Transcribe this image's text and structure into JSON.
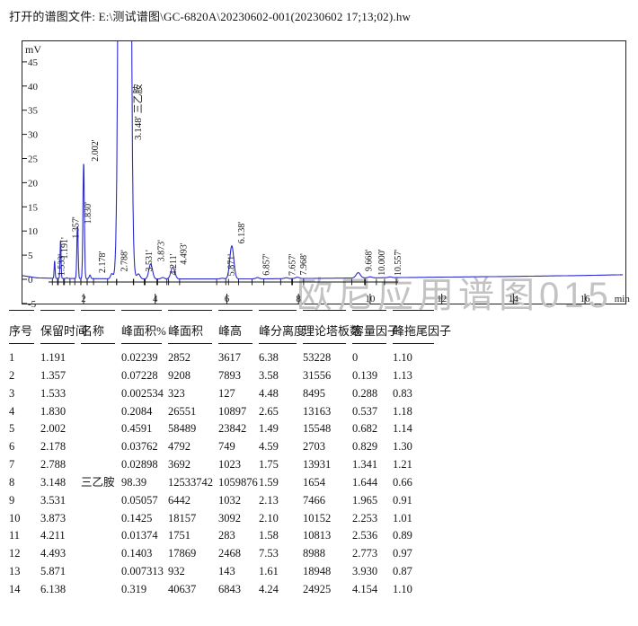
{
  "header": {
    "title": "打开的谱图文件: E:\\测试谱图\\GC-6820A\\20230602-001(20230602 17;13;02).hw"
  },
  "watermark": "欧尼应用谱图015",
  "chart_data": {
    "type": "line",
    "title": "",
    "xlabel": "min",
    "ylabel": "mV",
    "xlim": [
      0.3,
      17.1
    ],
    "ylim": [
      -5,
      49
    ],
    "x_ticks": [
      2,
      4,
      6,
      8,
      10,
      12,
      14,
      16
    ],
    "y_ticks": [
      45,
      40,
      35,
      30,
      25,
      20,
      15,
      10,
      5,
      0,
      -5
    ],
    "grid": "off",
    "trace_color": "#2b2bd0",
    "axis_color": "#1a1a1a",
    "baseline_points": [
      [
        0.26,
        0.8
      ],
      [
        0.7,
        0.3
      ],
      [
        1.2,
        0.2
      ],
      [
        3,
        0.1
      ],
      [
        5,
        0.07
      ],
      [
        7,
        0.1
      ],
      [
        8.5,
        0.2
      ],
      [
        10,
        0.3
      ],
      [
        12,
        0.45
      ],
      [
        14,
        0.6
      ],
      [
        16,
        0.8
      ],
      [
        17.06,
        0.95
      ]
    ],
    "peaks": [
      {
        "rt": 1.191,
        "height_mV": 3.62,
        "sigma": 0.013,
        "label": "1.191'",
        "label_dx": 14
      },
      {
        "rt": 1.357,
        "height_mV": 7.89,
        "sigma": 0.014,
        "label": "1.357'",
        "label_dx": 20
      },
      {
        "rt": 1.533,
        "height_mV": 0.13,
        "sigma": 0.015,
        "label": "1.533'",
        "label_dx": -3
      },
      {
        "rt": 1.83,
        "height_mV": 10.9,
        "sigma": 0.018,
        "label": "1.830'",
        "label_dx": 15
      },
      {
        "rt": 2.002,
        "height_mV": 23.84,
        "sigma": 0.02,
        "label": "2.002'",
        "label_dx": 16
      },
      {
        "rt": 2.178,
        "height_mV": 0.75,
        "sigma": 0.02,
        "label": "2.178'",
        "label_dx": 17
      },
      {
        "rt": 2.788,
        "height_mV": 1.02,
        "sigma": 0.035,
        "label": "2.788'",
        "label_dx": 17
      },
      {
        "rt": 3.148,
        "height_mV": 1059.9,
        "sigma": 0.08,
        "label": "3.148'",
        "label_dx": 18,
        "name": "三乙胺",
        "clipped": true
      },
      {
        "rt": 3.531,
        "height_mV": 1.03,
        "sigma": 0.045,
        "label": "3.531'",
        "label_dx": 15
      },
      {
        "rt": 3.873,
        "height_mV": 3.09,
        "sigma": 0.05,
        "label": "3.873'",
        "label_dx": 15
      },
      {
        "rt": 4.211,
        "height_mV": 0.28,
        "sigma": 0.045,
        "label": "4.211'",
        "label_dx": 15
      },
      {
        "rt": 4.493,
        "height_mV": 2.47,
        "sigma": 0.055,
        "label": "4.493'",
        "label_dx": 15
      },
      {
        "rt": 5.871,
        "height_mV": 0.14,
        "sigma": 0.05,
        "label": "5.871'",
        "label_dx": 13
      },
      {
        "rt": 6.138,
        "height_mV": 6.84,
        "sigma": 0.055,
        "label": "6.138'",
        "label_dx": 14
      },
      {
        "rt": 6.857,
        "height_mV": 0.25,
        "sigma": 0.05,
        "label": "6.857'",
        "label_dx": 13
      },
      {
        "rt": 7.657,
        "height_mV": 0.18,
        "sigma": 0.05,
        "label": "7.657'",
        "label_dx": 10
      },
      {
        "rt": 7.968,
        "height_mV": 0.27,
        "sigma": 0.05,
        "label": "7.968'",
        "label_dx": 10
      },
      {
        "rt": 9.668,
        "height_mV": 1.1,
        "sigma": 0.06,
        "label": "9.668'",
        "label_dx": 15
      },
      {
        "rt": 10.0,
        "height_mV": 0.22,
        "sigma": 0.05,
        "label": "10.000'",
        "label_dx": 16
      },
      {
        "rt": 10.557,
        "height_mV": 0.16,
        "sigma": 0.05,
        "label": "10.557'",
        "label_dx": 12
      }
    ]
  },
  "table": {
    "columns": [
      "序号",
      "保留时间",
      "名称",
      "峰面积%",
      "峰面积",
      "峰高",
      "峰分离度",
      "理论塔板数",
      "容量因子",
      "峰拖尾因子"
    ],
    "rows": [
      [
        "1",
        "1.191",
        "",
        "0.02239",
        "2852",
        "3617",
        "6.38",
        "53228",
        "0",
        "1.10"
      ],
      [
        "2",
        "1.357",
        "",
        "0.07228",
        "9208",
        "7893",
        "3.58",
        "31556",
        "0.139",
        "1.13"
      ],
      [
        "3",
        "1.533",
        "",
        "0.002534",
        "323",
        "127",
        "4.48",
        "8495",
        "0.288",
        "0.83"
      ],
      [
        "4",
        "1.830",
        "",
        "0.2084",
        "26551",
        "10897",
        "2.65",
        "13163",
        "0.537",
        "1.18"
      ],
      [
        "5",
        "2.002",
        "",
        "0.4591",
        "58489",
        "23842",
        "1.49",
        "15548",
        "0.682",
        "1.14"
      ],
      [
        "6",
        "2.178",
        "",
        "0.03762",
        "4792",
        "749",
        "4.59",
        "2703",
        "0.829",
        "1.30"
      ],
      [
        "7",
        "2.788",
        "",
        "0.02898",
        "3692",
        "1023",
        "1.75",
        "13931",
        "1.341",
        "1.21"
      ],
      [
        "8",
        "3.148",
        "三乙胺",
        "98.39",
        "12533742",
        "1059876",
        "1.59",
        "1654",
        "1.644",
        "0.66"
      ],
      [
        "9",
        "3.531",
        "",
        "0.05057",
        "6442",
        "1032",
        "2.13",
        "7466",
        "1.965",
        "0.91"
      ],
      [
        "10",
        "3.873",
        "",
        "0.1425",
        "18157",
        "3092",
        "2.10",
        "10152",
        "2.253",
        "1.01"
      ],
      [
        "11",
        "4.211",
        "",
        "0.01374",
        "1751",
        "283",
        "1.58",
        "10813",
        "2.536",
        "0.89"
      ],
      [
        "12",
        "4.493",
        "",
        "0.1403",
        "17869",
        "2468",
        "7.53",
        "8988",
        "2.773",
        "0.97"
      ],
      [
        "13",
        "5.871",
        "",
        "0.007313",
        "932",
        "143",
        "1.61",
        "18948",
        "3.930",
        "0.87"
      ],
      [
        "14",
        "6.138",
        "",
        "0.319",
        "40637",
        "6843",
        "4.24",
        "24925",
        "4.154",
        "1.10"
      ]
    ]
  }
}
